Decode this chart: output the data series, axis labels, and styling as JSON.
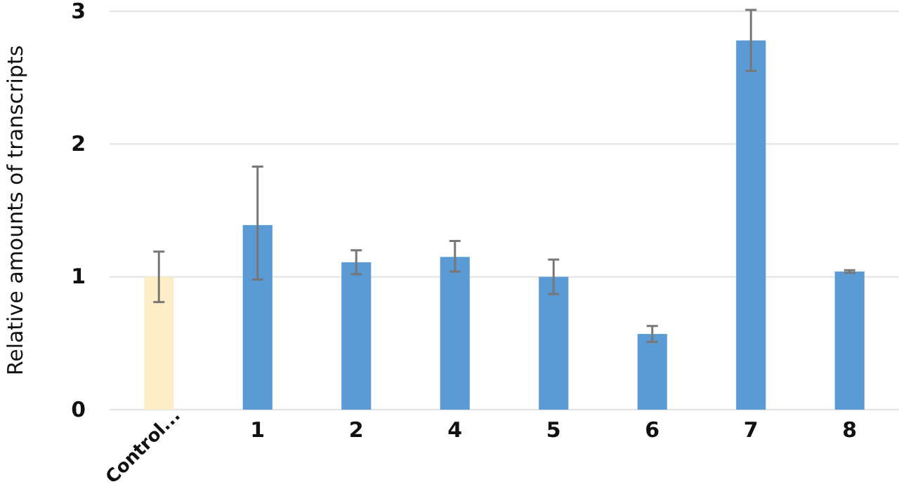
{
  "chart_data": {
    "type": "bar",
    "ylabel": "Relative amounts of transcripts",
    "categories": [
      "Control...",
      "1",
      "2",
      "4",
      "5",
      "6",
      "7",
      "8"
    ],
    "values": [
      1.0,
      1.39,
      1.11,
      1.15,
      1.0,
      0.57,
      2.78,
      1.04
    ],
    "colors": [
      "#fdeec8",
      "#5b9bd5",
      "#5b9bd5",
      "#5b9bd5",
      "#5b9bd5",
      "#5b9bd5",
      "#5b9bd5",
      "#5b9bd5"
    ],
    "errors": [
      [
        0.81,
        1.19
      ],
      [
        0.98,
        1.83
      ],
      [
        1.02,
        1.2
      ],
      [
        1.04,
        1.27
      ],
      [
        0.87,
        1.13
      ],
      [
        0.51,
        0.63
      ],
      [
        2.55,
        3.01
      ],
      [
        1.03,
        1.05
      ]
    ],
    "ylim": [
      0,
      3
    ],
    "yticks": [
      0,
      1,
      2,
      3
    ],
    "grid": "y"
  }
}
